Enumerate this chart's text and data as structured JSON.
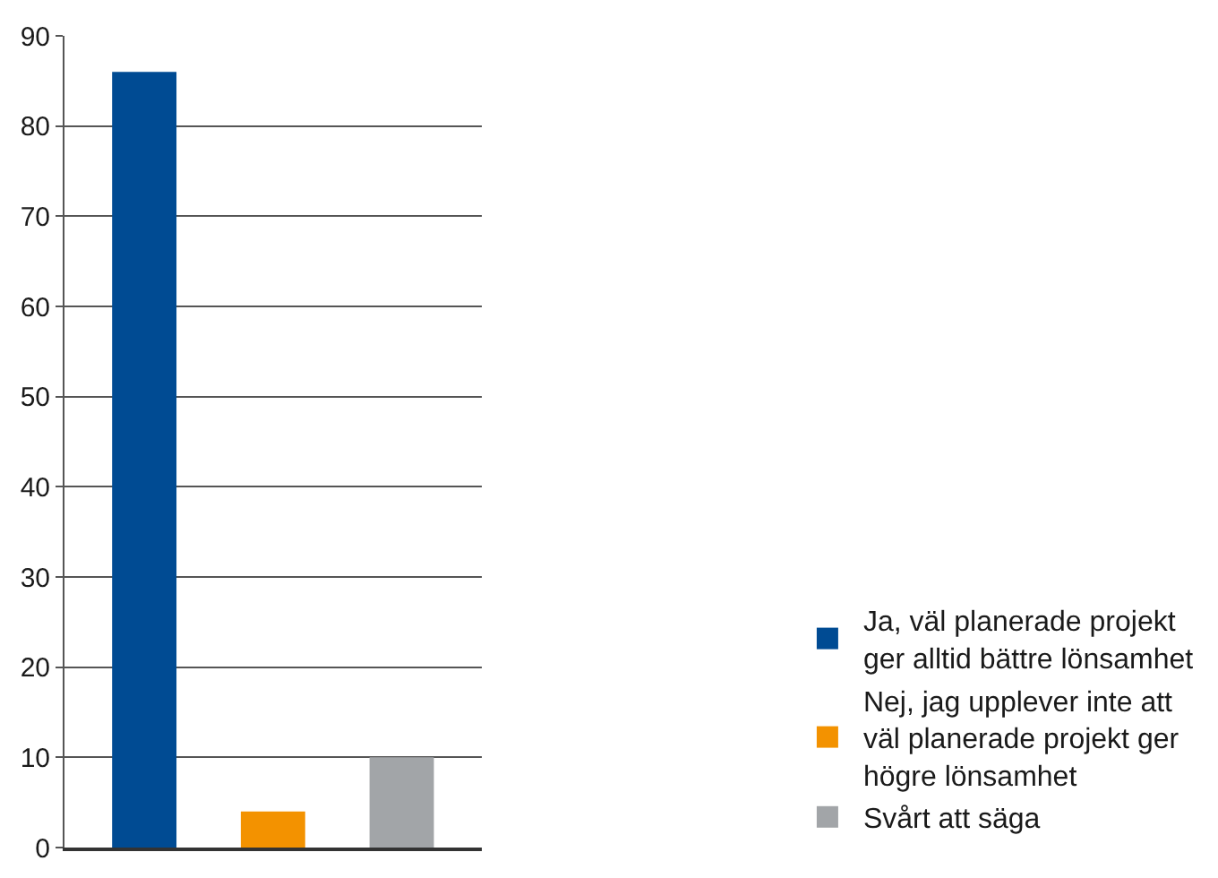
{
  "chart_data": {
    "type": "bar",
    "categories": [
      null,
      null,
      null
    ],
    "series": [
      {
        "name": "Ja, väl planerade projekt ger alltid bättre lönsamhet",
        "color": "#004b93",
        "values": [
          86,
          null,
          null
        ]
      },
      {
        "name": "Nej, jag upplever inte att väl planerade projekt ger högre lönsamhet",
        "color": "#f39200",
        "values": [
          null,
          4,
          null
        ]
      },
      {
        "name": "Svårt att säga",
        "color": "#a2a5a8",
        "values": [
          null,
          null,
          10
        ]
      }
    ],
    "ylim": [
      0,
      90
    ],
    "yticks": [
      0,
      10,
      20,
      30,
      40,
      50,
      60,
      70,
      80,
      90
    ],
    "grid": "y",
    "legend": "bottom right"
  }
}
